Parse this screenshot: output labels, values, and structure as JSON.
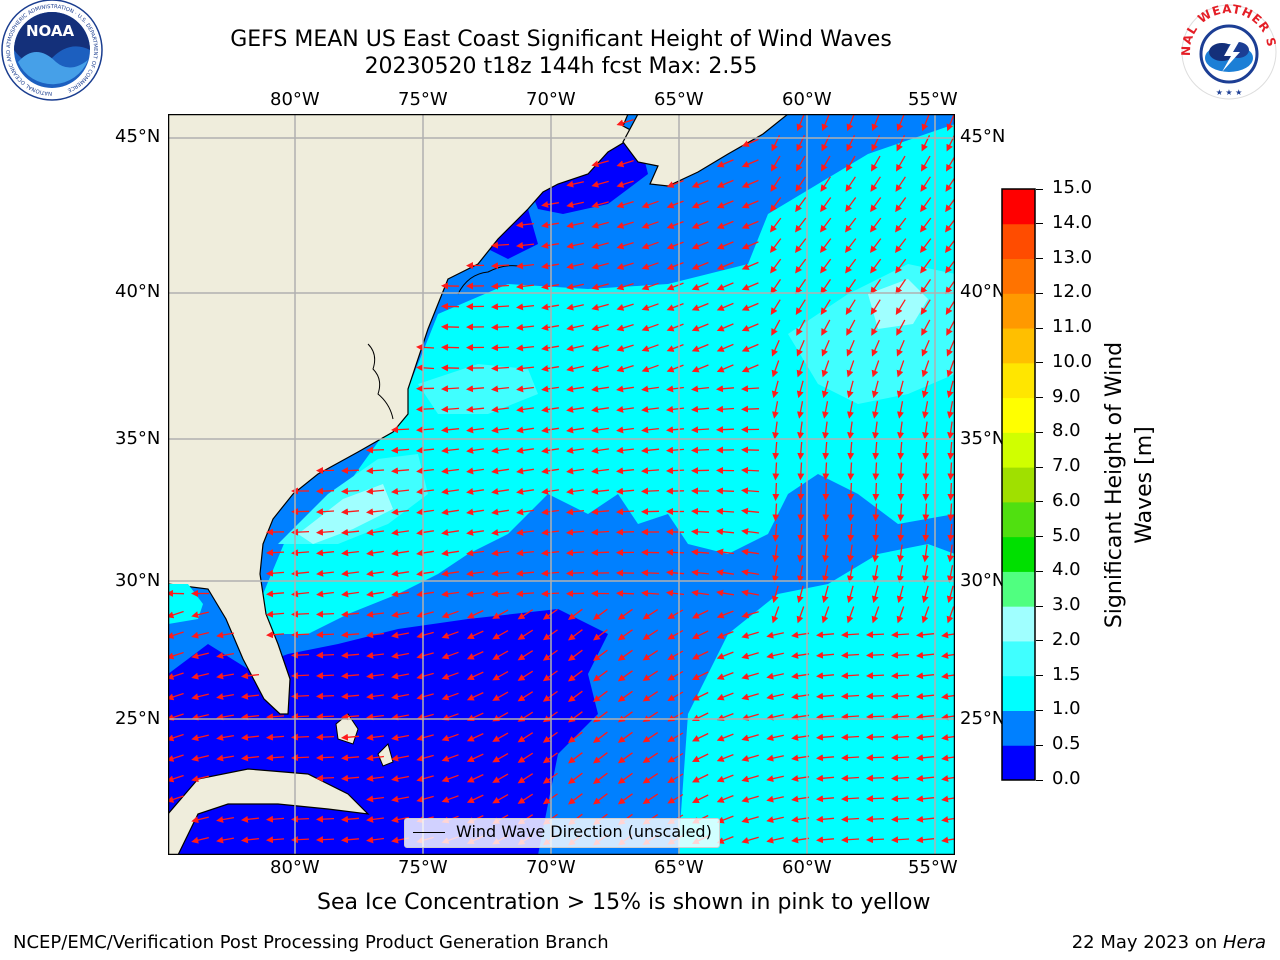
{
  "title": {
    "line1": "GEFS MEAN US East Coast Significant Height of Wind Waves",
    "line2": "20230520 t18z 144h fcst   Max: 2.55"
  },
  "map": {
    "lon_labels": [
      "80°W",
      "75°W",
      "70°W",
      "65°W",
      "60°W",
      "55°W"
    ],
    "lat_labels": [
      "45°N",
      "40°N",
      "35°N",
      "30°N",
      "25°N"
    ],
    "colors": {
      "land": "#efeddc",
      "gridline": "#b0b0b0",
      "arrow": "#ff1a1a",
      "coast": "#000000"
    }
  },
  "legend": {
    "label": "Wind Wave Direction (unscaled)"
  },
  "colorbar": {
    "label_line1": "Significant Height of Wind",
    "label_line2": "Waves [m]",
    "ticks": [
      "0.0",
      "0.5",
      "1.0",
      "1.5",
      "2.0",
      "3.0",
      "4.0",
      "5.0",
      "6.0",
      "7.0",
      "8.0",
      "9.0",
      "10.0",
      "11.0",
      "12.0",
      "13.0",
      "14.0",
      "15.0"
    ],
    "colors": [
      "#0000ff",
      "#0080ff",
      "#00ffff",
      "#40ffff",
      "#a0ffff",
      "#50ff80",
      "#00e000",
      "#50e010",
      "#a0e000",
      "#d0ff00",
      "#ffff00",
      "#ffe600",
      "#ffbf00",
      "#ff9900",
      "#ff7300",
      "#ff4c00",
      "#ff0000"
    ]
  },
  "note": "Sea Ice Concentration > 15% is shown in pink to yellow",
  "footer": {
    "left": "NCEP/EMC/Verification Post Processing Product Generation Branch",
    "right_date": "22 May 2023 on ",
    "right_host": "Hera"
  },
  "logos": {
    "noaa_text": "NOAA",
    "noaa_ring": "NATIONAL OCEANIC AND ATMOSPHERIC ADMINISTRATION · U.S. DEPARTMENT OF COMMERCE",
    "nws_ring": "NATIONAL WEATHER SERVICE"
  }
}
